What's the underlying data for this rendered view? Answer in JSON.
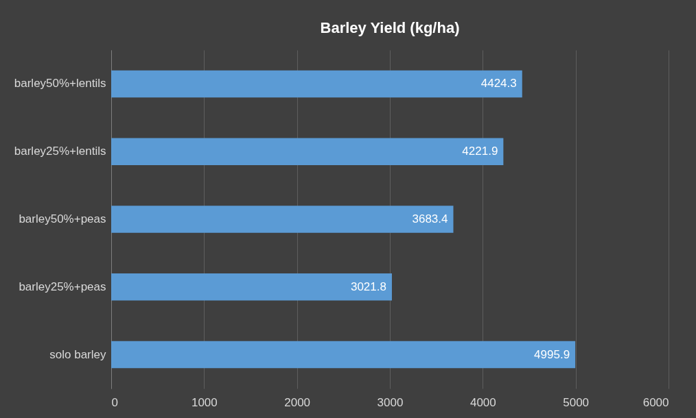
{
  "chart_data": {
    "type": "bar",
    "orientation": "horizontal",
    "title": "Barley Yield (kg/ha)",
    "categories": [
      "barley50%+lentils",
      "barley25%+lentils",
      "barley50%+peas",
      "barley25%+peas",
      "solo barley"
    ],
    "values": [
      4424.3,
      4221.9,
      3683.4,
      3021.8,
      4995.9
    ],
    "color": "#5b9bd5",
    "xlim": [
      0,
      6000
    ],
    "xticks": [
      0,
      1000,
      2000,
      3000,
      4000,
      5000,
      6000
    ],
    "grid": "x",
    "data_labels": true
  }
}
